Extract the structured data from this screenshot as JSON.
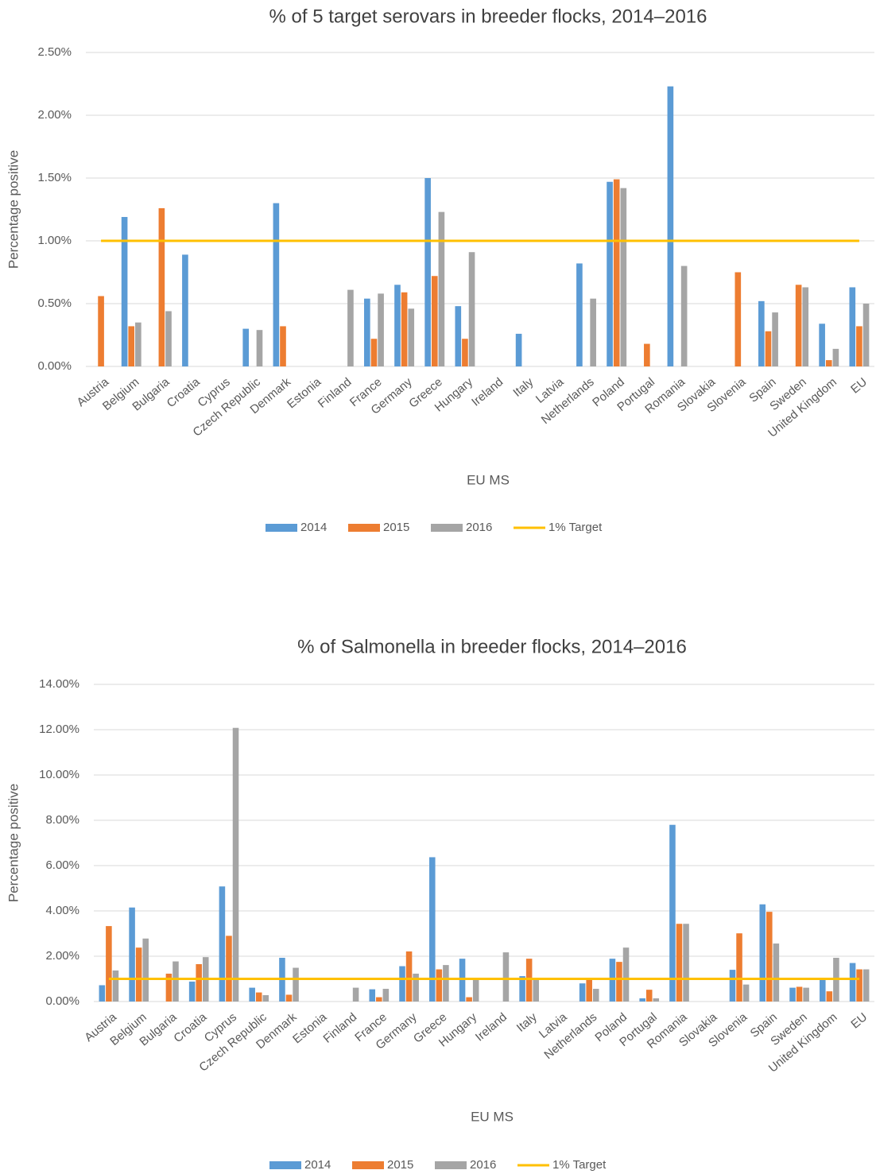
{
  "chart_data": [
    {
      "type": "bar",
      "title": "% of 5 target serovars in breeder flocks, 2014–2016",
      "x_label": "EU MS",
      "y_label": "Percentage positive",
      "categories": [
        "Austria",
        "Belgium",
        "Bulgaria",
        "Croatia",
        "Cyprus",
        "Czech Republic",
        "Denmark",
        "Estonia",
        "Finland",
        "France",
        "Germany",
        "Greece",
        "Hungary",
        "Ireland",
        "Italy",
        "Latvia",
        "Netherlands",
        "Poland",
        "Portugal",
        "Romania",
        "Slovakia",
        "Slovenia",
        "Spain",
        "Sweden",
        "United Kingdom",
        "EU"
      ],
      "series": [
        {
          "name": "2014",
          "color": "#5b9bd5",
          "values": [
            0,
            1.19,
            0,
            0.89,
            0,
            0.3,
            1.3,
            0,
            0,
            0.54,
            0.65,
            1.5,
            0.48,
            0,
            0.26,
            0,
            0.82,
            1.47,
            0,
            2.23,
            0,
            0,
            0.52,
            0,
            0.34,
            0.63
          ]
        },
        {
          "name": "2015",
          "color": "#ed7d31",
          "values": [
            0.56,
            0.32,
            1.26,
            0,
            0,
            0,
            0.32,
            0,
            0,
            0.22,
            0.59,
            0.72,
            0.22,
            0,
            0,
            0,
            0,
            1.49,
            0.18,
            0,
            0,
            0.75,
            0.28,
            0.65,
            0.05,
            0.32
          ]
        },
        {
          "name": "2016",
          "color": "#a5a5a5",
          "values": [
            0,
            0.35,
            0.44,
            0,
            0,
            0.29,
            0,
            0,
            0.61,
            0.58,
            0.46,
            1.23,
            0.91,
            0,
            0,
            0,
            0.54,
            1.42,
            0,
            0.8,
            0,
            0,
            0.43,
            0.63,
            0.14,
            0.5
          ]
        },
        {
          "name": "1% Target",
          "color": "#ffc000",
          "type": "line",
          "values": [
            1,
            1,
            1,
            1,
            1,
            1,
            1,
            1,
            1,
            1,
            1,
            1,
            1,
            1,
            1,
            1,
            1,
            1,
            1,
            1,
            1,
            1,
            1,
            1,
            1,
            1
          ]
        }
      ],
      "ylim": [
        0,
        2.5
      ],
      "yticks": [
        {
          "value": 0,
          "label": "0.00%"
        },
        {
          "value": 0.5,
          "label": "0.50%"
        },
        {
          "value": 1,
          "label": "1.00%"
        },
        {
          "value": 1.5,
          "label": "1.50%"
        },
        {
          "value": 2,
          "label": "2.00%"
        },
        {
          "value": 2.5,
          "label": "2.50%"
        }
      ],
      "grid": true,
      "legend": "bottom"
    },
    {
      "type": "bar",
      "title": "% of Salmonella in breeder flocks, 2014–2016",
      "x_label": "EU MS",
      "y_label": "Percentage positive",
      "categories": [
        "Austria",
        "Belgium",
        "Bulgaria",
        "Croatia",
        "Cyprus",
        "Czech Republic",
        "Denmark",
        "Estonia",
        "Finland",
        "France",
        "Germany",
        "Greece",
        "Hungary",
        "Ireland",
        "Italy",
        "Latvia",
        "Netherlands",
        "Poland",
        "Portugal",
        "Romania",
        "Slovakia",
        "Slovenia",
        "Spain",
        "Sweden",
        "United Kingdom",
        "EU"
      ],
      "series": [
        {
          "name": "2014",
          "color": "#5b9bd5",
          "values": [
            0.72,
            4.15,
            0,
            0.88,
            5.08,
            0.61,
            1.93,
            0,
            0,
            0.54,
            1.56,
            6.37,
            1.89,
            0,
            1.12,
            0,
            0.8,
            1.89,
            0.14,
            7.8,
            0,
            1.4,
            4.29,
            0.61,
            0.95,
            1.7
          ]
        },
        {
          "name": "2015",
          "color": "#ed7d31",
          "values": [
            3.33,
            2.38,
            1.23,
            1.65,
            2.9,
            0.4,
            0.3,
            0,
            0,
            0.19,
            2.21,
            1.42,
            0.19,
            0,
            1.89,
            0,
            1.0,
            1.75,
            0.52,
            3.43,
            0,
            3.01,
            3.96,
            0.65,
            0.45,
            1.42
          ]
        },
        {
          "name": "2016",
          "color": "#a5a5a5",
          "values": [
            1.37,
            2.78,
            1.77,
            1.96,
            12.08,
            0.28,
            1.49,
            0,
            0.61,
            0.56,
            1.23,
            1.61,
            1.0,
            2.17,
            1.0,
            0,
            0.56,
            2.38,
            0.14,
            3.43,
            0,
            0.75,
            2.56,
            0.61,
            1.93,
            1.42
          ]
        },
        {
          "name": "1% Target",
          "color": "#ffc000",
          "type": "line",
          "values": [
            1,
            1,
            1,
            1,
            1,
            1,
            1,
            1,
            1,
            1,
            1,
            1,
            1,
            1,
            1,
            1,
            1,
            1,
            1,
            1,
            1,
            1,
            1,
            1,
            1,
            1
          ]
        }
      ],
      "ylim": [
        0,
        14
      ],
      "yticks": [
        {
          "value": 0,
          "label": "0.00%"
        },
        {
          "value": 2,
          "label": "2.00%"
        },
        {
          "value": 4,
          "label": "4.00%"
        },
        {
          "value": 6,
          "label": "6.00%"
        },
        {
          "value": 8,
          "label": "8.00%"
        },
        {
          "value": 10,
          "label": "10.00%"
        },
        {
          "value": 12,
          "label": "12.00%"
        },
        {
          "value": 14,
          "label": "14.00%"
        }
      ],
      "grid": true,
      "legend": "bottom"
    }
  ]
}
